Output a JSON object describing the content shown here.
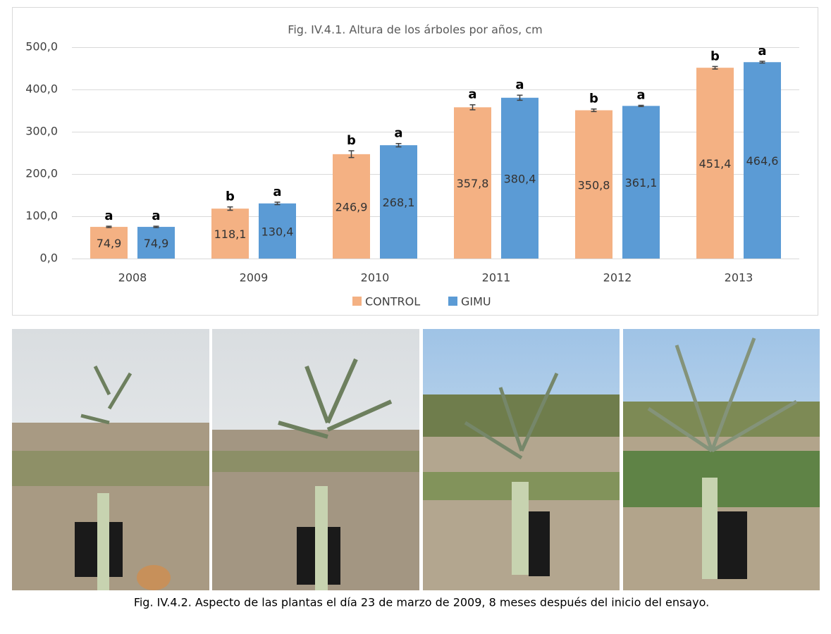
{
  "chart_data": {
    "type": "bar",
    "title": "Fig. IV.4.1. Altura de los árboles por años, cm",
    "categories": [
      "2008",
      "2009",
      "2010",
      "2011",
      "2012",
      "2013"
    ],
    "series": [
      {
        "name": "CONTROL",
        "color": "#f4b183",
        "values": [
          74.9,
          118.1,
          246.9,
          357.8,
          350.8,
          451.4
        ],
        "value_labels": [
          "74,9",
          "118,1",
          "246,9",
          "357,8",
          "350,8",
          "451,4"
        ],
        "errors": [
          1.5,
          4,
          8,
          6,
          3,
          3
        ],
        "letters": [
          "a",
          "b",
          "b",
          "a",
          "b",
          "b"
        ]
      },
      {
        "name": "GIMU",
        "color": "#5b9bd5",
        "values": [
          74.9,
          130.4,
          268.1,
          380.4,
          361.1,
          464.6
        ],
        "value_labels": [
          "74,9",
          "130,4",
          "268,1",
          "380,4",
          "361,1",
          "464,6"
        ],
        "errors": [
          1.5,
          3,
          4,
          6,
          1.5,
          2
        ],
        "letters": [
          "a",
          "a",
          "a",
          "a",
          "a",
          "a"
        ]
      }
    ],
    "ylim": [
      0,
      500
    ],
    "yticks": [
      {
        "value": 0,
        "label": "0,0"
      },
      {
        "value": 100,
        "label": "100,0"
      },
      {
        "value": 200,
        "label": "200,0"
      },
      {
        "value": 300,
        "label": "300,0"
      },
      {
        "value": 400,
        "label": "400,0"
      },
      {
        "value": 500,
        "label": "500,0"
      }
    ],
    "grid": true,
    "legend": "bottom"
  },
  "caption": "Fig. IV.4.2. Aspecto de las plantas el día 23 de marzo de 2009, 8 meses después del inicio del ensayo."
}
